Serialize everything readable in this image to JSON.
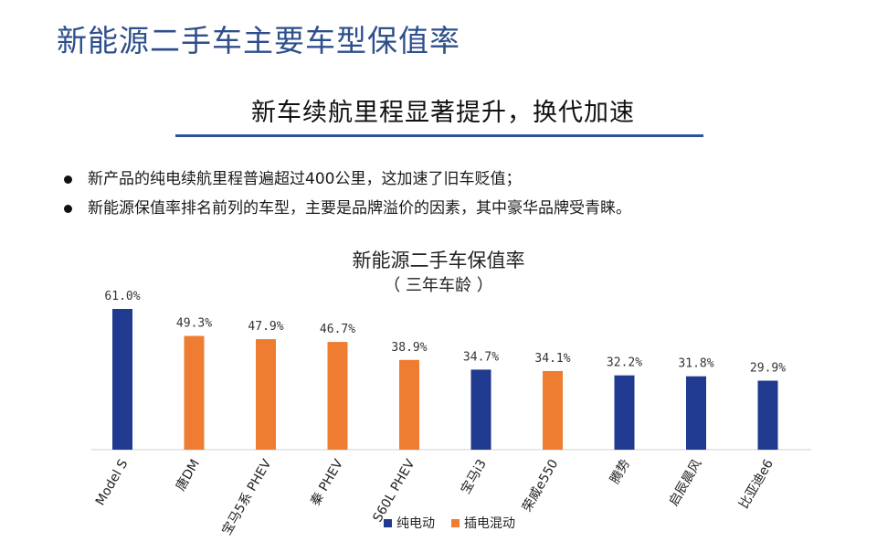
{
  "page": {
    "title": "新能源二手车主要车型保值率",
    "banner": "新车续航里程显著提升，换代加速",
    "bullets": [
      "新产品的纯电续航里程普遍超过400公里，这加速了旧车贬值；",
      "新能源保值率排名前列的车型，主要是品牌溢价的因素，其中豪华品牌受青睐。"
    ]
  },
  "chart_data": {
    "type": "bar",
    "title": "新能源二手车保值率",
    "subtitle": "（ 三年车龄 ）",
    "categories": [
      "Model S",
      "唐DM",
      "宝马5系 PHEV",
      "秦 PHEV",
      "S60L PHEV",
      "宝马i3",
      "荣威e550",
      "腾势",
      "启辰晨风",
      "比亚迪e6"
    ],
    "values": [
      61.0,
      49.3,
      47.9,
      46.7,
      38.9,
      34.7,
      34.1,
      32.2,
      31.8,
      29.9
    ],
    "value_labels": [
      "61.0%",
      "49.3%",
      "47.9%",
      "46.7%",
      "38.9%",
      "34.7%",
      "34.1%",
      "32.2%",
      "31.8%",
      "29.9%"
    ],
    "series_of_bar": [
      "纯电动",
      "插电混动",
      "插电混动",
      "插电混动",
      "插电混动",
      "纯电动",
      "插电混动",
      "纯电动",
      "纯电动",
      "纯电动"
    ],
    "legend": [
      {
        "name": "纯电动",
        "color": "#1f3a8f"
      },
      {
        "name": "插电混动",
        "color": "#ee7d31"
      }
    ],
    "legend_position": "bottom",
    "ylim": [
      0,
      61.0
    ],
    "grid": false
  }
}
